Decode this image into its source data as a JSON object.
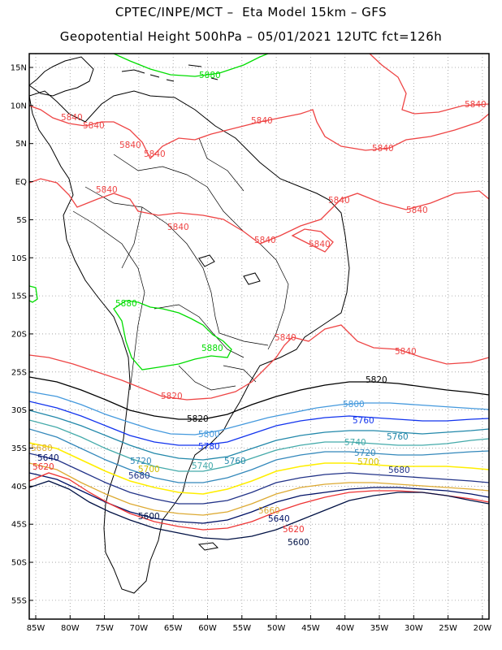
{
  "header": {
    "line1": "CPTEC/INPE/MCT –  Eta Model 15km – GFS",
    "line2": "Geopotential Height 500hPa – 05/01/2021 12UTC fct=126h"
  },
  "axes": {
    "lat_labels": [
      "15N",
      "10N",
      "5N",
      "EQ",
      "5S",
      "10S",
      "15S",
      "20S",
      "25S",
      "30S",
      "35S",
      "40S",
      "45S",
      "50S",
      "55S"
    ],
    "lon_labels": [
      "85W",
      "80W",
      "75W",
      "70W",
      "65W",
      "60W",
      "55W",
      "50W",
      "45W",
      "40W",
      "35W",
      "30W",
      "25W",
      "20W"
    ]
  },
  "colors": {
    "5880": "#00dd00",
    "5840": "#ee4444",
    "5820": "#000000",
    "5800": "#4499dd",
    "5780": "#1133ee",
    "5760": "#2288aa",
    "5740": "#44aaaa",
    "5720": "#3388bb",
    "5700": "#ffee00",
    "5680": "#223388",
    "5660": "#ddaa33",
    "5640": "#001166",
    "5620": "#ee3333",
    "5600": "#001144"
  },
  "contour_labels": [
    {
      "text": "5880",
      "key": "5880"
    },
    {
      "text": "5880",
      "key": "5880"
    },
    {
      "text": "5880",
      "key": "5880"
    },
    {
      "text": "5840",
      "key": "5840"
    },
    {
      "text": "5840",
      "key": "5840"
    },
    {
      "text": "5840",
      "key": "5840"
    },
    {
      "text": "5840",
      "key": "5840"
    },
    {
      "text": "5840",
      "key": "5840"
    },
    {
      "text": "5840",
      "key": "5840"
    },
    {
      "text": "5840",
      "key": "5840"
    },
    {
      "text": "5840",
      "key": "5840"
    },
    {
      "text": "5840",
      "key": "5840"
    },
    {
      "text": "5840",
      "key": "5840"
    },
    {
      "text": "5840",
      "key": "5840"
    },
    {
      "text": "5840",
      "key": "5840"
    },
    {
      "text": "5840",
      "key": "5840"
    },
    {
      "text": "5840",
      "key": "5840"
    },
    {
      "text": "5840",
      "key": "5840"
    },
    {
      "text": "5820",
      "key": "5820"
    },
    {
      "text": "5820",
      "key": "5820"
    },
    {
      "text": "5800",
      "key": "5800"
    },
    {
      "text": "5800",
      "key": "5800"
    },
    {
      "text": "5780",
      "key": "5780"
    },
    {
      "text": "5760",
      "key": "5760"
    },
    {
      "text": "5760",
      "key": "5760"
    },
    {
      "text": "5760",
      "key": "5760"
    },
    {
      "text": "5740",
      "key": "5740"
    },
    {
      "text": "5740",
      "key": "5740"
    },
    {
      "text": "5720",
      "key": "5720"
    },
    {
      "text": "5720",
      "key": "5720"
    },
    {
      "text": "5700",
      "key": "5700"
    },
    {
      "text": "5700",
      "key": "5700"
    },
    {
      "text": "5680",
      "key": "5680"
    },
    {
      "text": "5680",
      "key": "5680"
    },
    {
      "text": "5680",
      "key": "5680"
    },
    {
      "text": "5660",
      "key": "5660"
    },
    {
      "text": "5640",
      "key": "5640"
    },
    {
      "text": "5640",
      "key": "5640"
    },
    {
      "text": "5620",
      "key": "5620"
    },
    {
      "text": "5620",
      "key": "5620"
    },
    {
      "text": "5600",
      "key": "5600"
    },
    {
      "text": "5600",
      "key": "5600"
    }
  ]
}
